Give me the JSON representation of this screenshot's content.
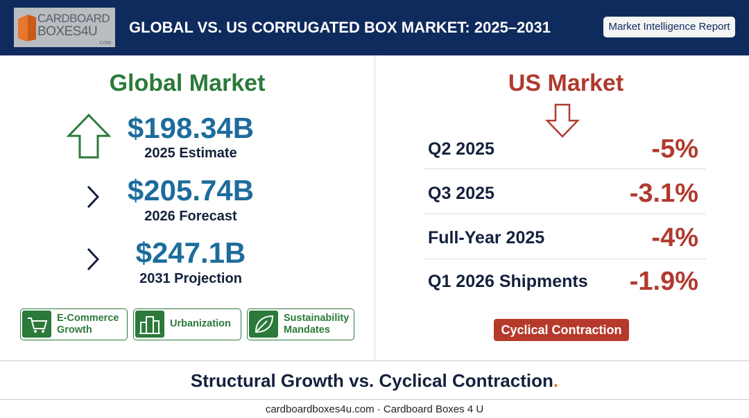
{
  "header": {
    "logo": {
      "line1": "CARDBOARD",
      "line2": "BOXES4U",
      "suffix": ".COM"
    },
    "title": "GLOBAL VS. US CORRUGATED BOX MARKET: 2025–2031",
    "badge": "Market Intelligence Report"
  },
  "global": {
    "heading": "Global Market",
    "metrics": [
      {
        "value": "$198.34B",
        "label": "2025 Estimate"
      },
      {
        "value": "$205.74B",
        "label": "2026 Forecast"
      },
      {
        "value": "$247.1B",
        "label": "2031 Projection"
      }
    ],
    "drivers": [
      {
        "label": "E-Commerce Growth"
      },
      {
        "label": "Urbanization"
      },
      {
        "label": "Sustainability Mandates"
      }
    ]
  },
  "us": {
    "heading": "US Market",
    "rows": [
      {
        "label": "Q2 2025",
        "value": "-5%"
      },
      {
        "label": "Q3 2025",
        "value": "-3.1%"
      },
      {
        "label": "Full-Year 2025",
        "value": "-4%"
      },
      {
        "label": "Q1 2026 Shipments",
        "value": "-1.9%"
      }
    ],
    "badge": "Cyclical Contraction"
  },
  "tagline": {
    "text": "Structural Growth vs. Cyclical Contraction",
    "end": "."
  },
  "footer": "cardboardboxes4u.com · Cardboard Boxes 4 U"
}
